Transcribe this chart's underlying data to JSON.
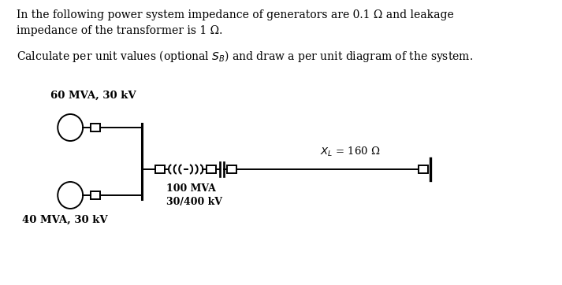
{
  "title_line1": "In the following power system impedance of generators are 0.1 Ω and leakage",
  "title_line2": "impedance of the transformer is 1 Ω.",
  "subtitle": "Calculate per unit values (optional $S_B$) and draw a per unit diagram of the system.",
  "label_gen1": "60 MVA, 30 kV",
  "label_gen2": "40 MVA, 30 kV",
  "label_transformer": "100 MVA\n30/400 kV",
  "label_xl": "$X_L$ = 160 Ω",
  "bg_color": "#ffffff",
  "line_color": "#000000",
  "text_color": "#000000"
}
